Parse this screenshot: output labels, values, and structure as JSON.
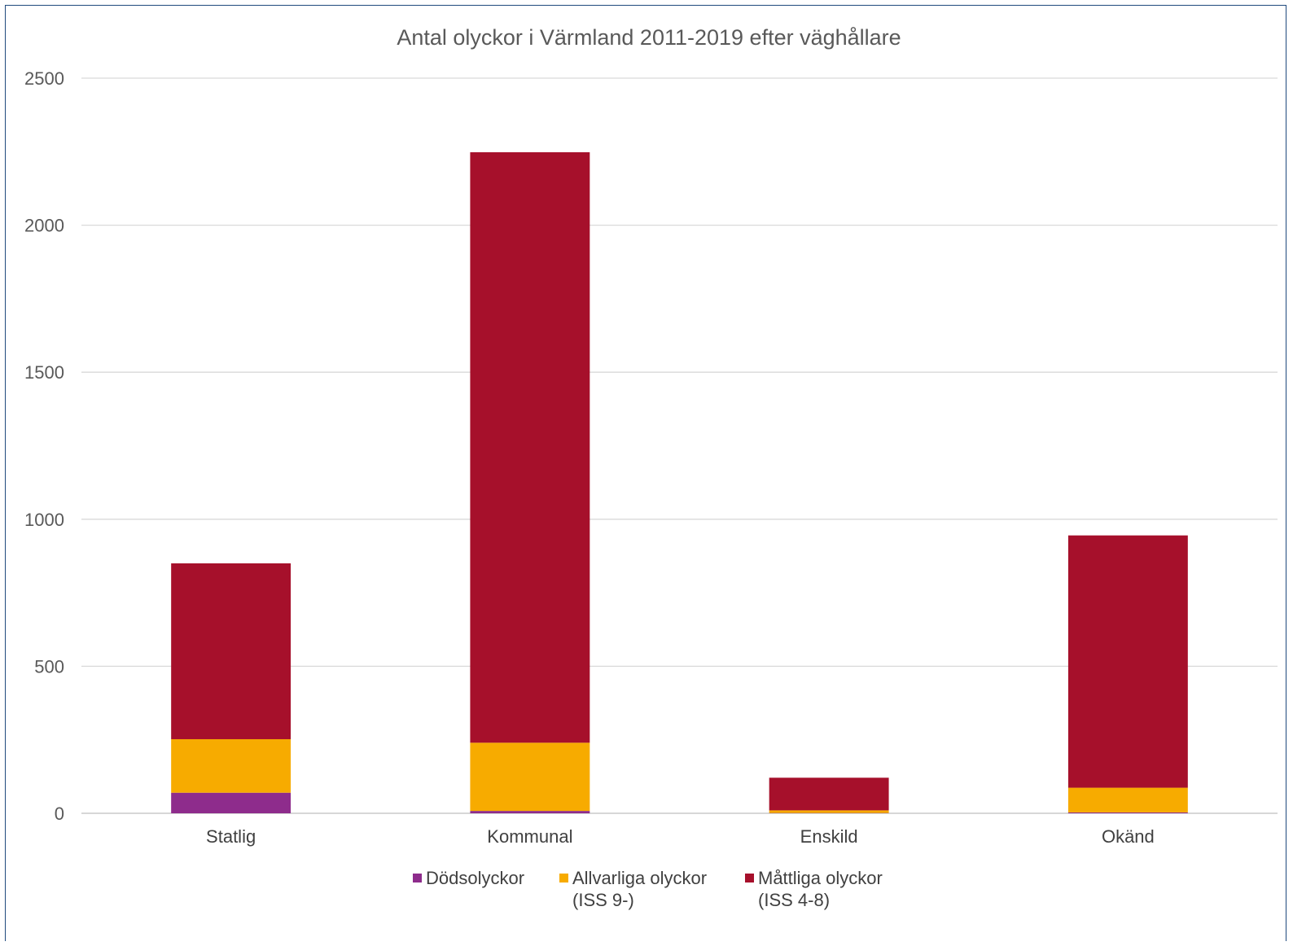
{
  "chart_data": {
    "type": "bar",
    "stacked": true,
    "title": "Antal olyckor i Värmland 2011-2019 efter väghållare",
    "xlabel": "",
    "ylabel": "",
    "categories": [
      "Statlig",
      "Kommunal",
      "Enskild",
      "Okänd"
    ],
    "ylim": [
      0,
      2500
    ],
    "yticks": [
      0,
      500,
      1000,
      1500,
      2000,
      2500
    ],
    "grid": true,
    "legend_position": "bottom",
    "series": [
      {
        "name": "Dödsolyckor",
        "color": "#8e2c8c",
        "values": [
          70,
          8,
          1,
          3
        ]
      },
      {
        "name": "Allvarliga olyckor (ISS 9-)",
        "legend_lines": [
          "Allvarliga olyckor",
          "(ISS 9-)"
        ],
        "color": "#f7ab00",
        "values": [
          182,
          232,
          9,
          84
        ]
      },
      {
        "name": "Måttliga olyckor (ISS 4-8)",
        "legend_lines": [
          "Måttliga olyckor",
          "(ISS 4-8)"
        ],
        "color": "#a6102b",
        "values": [
          598,
          2008,
          111,
          858
        ]
      }
    ]
  }
}
